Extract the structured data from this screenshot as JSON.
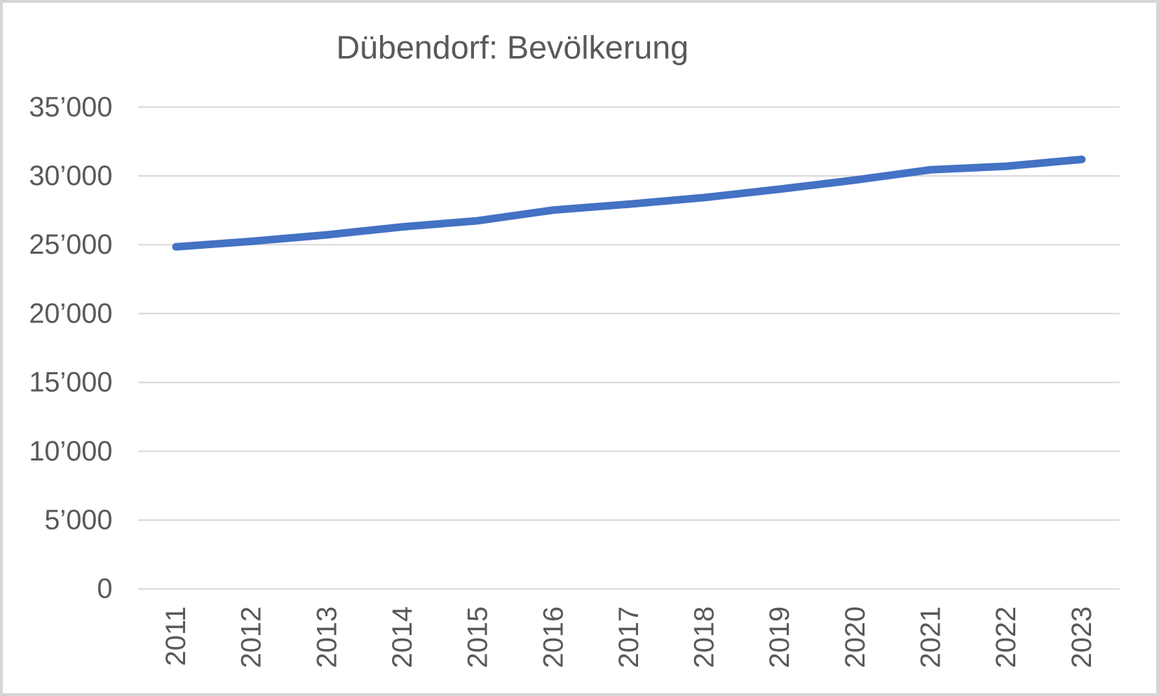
{
  "chart_data": {
    "type": "line",
    "title": "Dübendorf: Bevölkerung",
    "xlabel": "",
    "ylabel": "",
    "categories": [
      "2011",
      "2012",
      "2013",
      "2014",
      "2015",
      "2016",
      "2017",
      "2018",
      "2019",
      "2020",
      "2021",
      "2022",
      "2023"
    ],
    "series": [
      {
        "name": "Bevölkerung",
        "values": [
          24850,
          25250,
          25720,
          26300,
          26750,
          27520,
          27950,
          28430,
          29040,
          29700,
          30450,
          30700,
          31200
        ]
      }
    ],
    "ylim": [
      0,
      35000
    ],
    "y_ticks": [
      {
        "value": 0,
        "label": "0"
      },
      {
        "value": 5000,
        "label": "5’000"
      },
      {
        "value": 10000,
        "label": "10’000"
      },
      {
        "value": 15000,
        "label": "15’000"
      },
      {
        "value": 20000,
        "label": "20’000"
      },
      {
        "value": 25000,
        "label": "25’000"
      },
      {
        "value": 30000,
        "label": "30’000"
      },
      {
        "value": 35000,
        "label": "35’000"
      }
    ],
    "grid": "horizontal-only",
    "legend": "none",
    "x_tick_rotation_deg": -90,
    "line_color": "#4472C4",
    "grid_color": "#D9D9D9",
    "text_color": "#595959",
    "frame_border_color": "#D6D6D6",
    "background_color": "#FFFFFF"
  }
}
